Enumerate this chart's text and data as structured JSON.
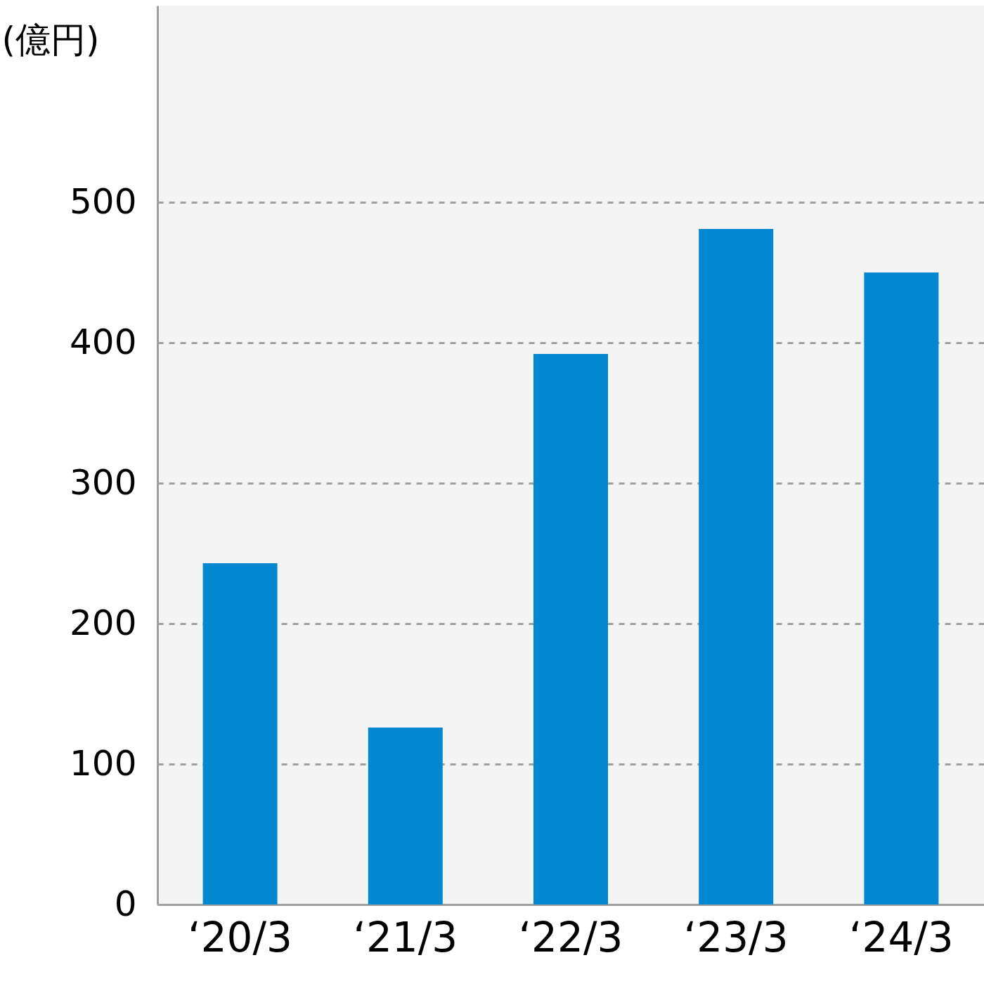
{
  "chart_data": {
    "type": "bar",
    "ylabel": "(億円)",
    "categories": [
      "‘20/3",
      "‘21/3",
      "‘22/3",
      "‘23/3",
      "‘24/3"
    ],
    "values": [
      243,
      126,
      392,
      481,
      450
    ],
    "color": "#0288d1",
    "ylim": [
      0,
      640
    ],
    "yticks": [
      0,
      100,
      200,
      300,
      400,
      500
    ],
    "grid": "y"
  }
}
